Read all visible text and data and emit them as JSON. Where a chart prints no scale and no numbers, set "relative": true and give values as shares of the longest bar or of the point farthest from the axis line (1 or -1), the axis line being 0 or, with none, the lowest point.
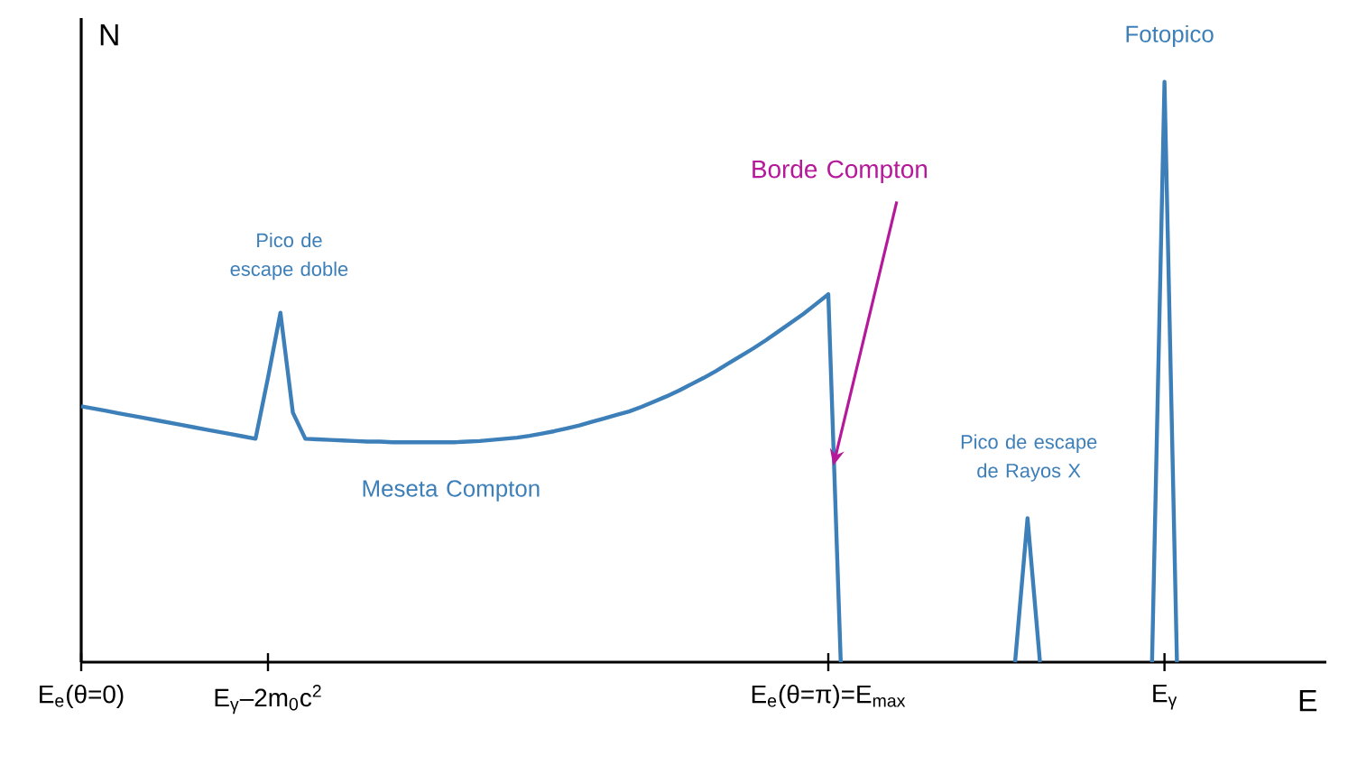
{
  "chart_data": {
    "type": "line",
    "relative": true,
    "xlabel": "E",
    "ylabel": "N",
    "categories": [
      "E$_{e}$(θ=0)",
      null,
      null,
      null,
      null,
      null,
      null,
      null,
      null,
      null,
      null,
      null,
      null,
      null,
      null,
      "E$_{γ}$–2m$_{0}$c$^{2}$",
      null,
      null,
      null,
      null,
      null,
      null,
      null,
      null,
      null,
      null,
      null,
      null,
      null,
      null,
      null,
      null,
      null,
      null,
      null,
      null,
      null,
      null,
      null,
      null,
      null,
      null,
      null,
      null,
      null,
      null,
      null,
      null,
      null,
      null,
      null,
      null,
      null,
      null,
      null,
      null,
      null,
      null,
      null,
      null,
      "E$_{e}$(θ=π)=E$_{max}$",
      null,
      null,
      null,
      null,
      null,
      null,
      null,
      null,
      null,
      null,
      null,
      null,
      null,
      null,
      null,
      null,
      null,
      null,
      null,
      null,
      null,
      null,
      null,
      null,
      null,
      null,
      "E$_{γ}$",
      null,
      null,
      null,
      null,
      null,
      null,
      null,
      null,
      null,
      null,
      null,
      null,
      null
    ],
    "series": [
      {
        "color": "#3d7fb8",
        "values": [
          0.441,
          0.437,
          0.433,
          0.429,
          0.425,
          0.421,
          0.417,
          0.413,
          0.409,
          0.405,
          0.401,
          0.397,
          0.393,
          0.389,
          0.385,
          0.49,
          0.602,
          0.43,
          0.385,
          0.384,
          0.383,
          0.382,
          0.381,
          0.38,
          0.38,
          0.379,
          0.379,
          0.379,
          0.379,
          0.379,
          0.379,
          0.38,
          0.381,
          0.383,
          0.385,
          0.387,
          0.39,
          0.394,
          0.398,
          0.403,
          0.408,
          0.414,
          0.42,
          0.426,
          0.432,
          0.44,
          0.449,
          0.458,
          0.468,
          0.479,
          0.49,
          0.502,
          0.515,
          0.528,
          0.541,
          0.555,
          0.57,
          0.585,
          0.6,
          0.617,
          0.634,
          0,
          null,
          null,
          null,
          null,
          null,
          null,
          null,
          null,
          null,
          null,
          null,
          null,
          null,
          0,
          0.248,
          0,
          null,
          null,
          null,
          null,
          null,
          null,
          null,
          null,
          0,
          1,
          0,
          null,
          null,
          null,
          null,
          null,
          null,
          null,
          null,
          null,
          null,
          null,
          null
        ]
      }
    ],
    "annotations": [
      "Pico de escape doble",
      "Meseta Compton",
      "Borde Compton",
      "Pico de escape de Rayos X",
      "Fotopico"
    ],
    "grid": false,
    "marker": "none",
    "line_style": "solid"
  }
}
